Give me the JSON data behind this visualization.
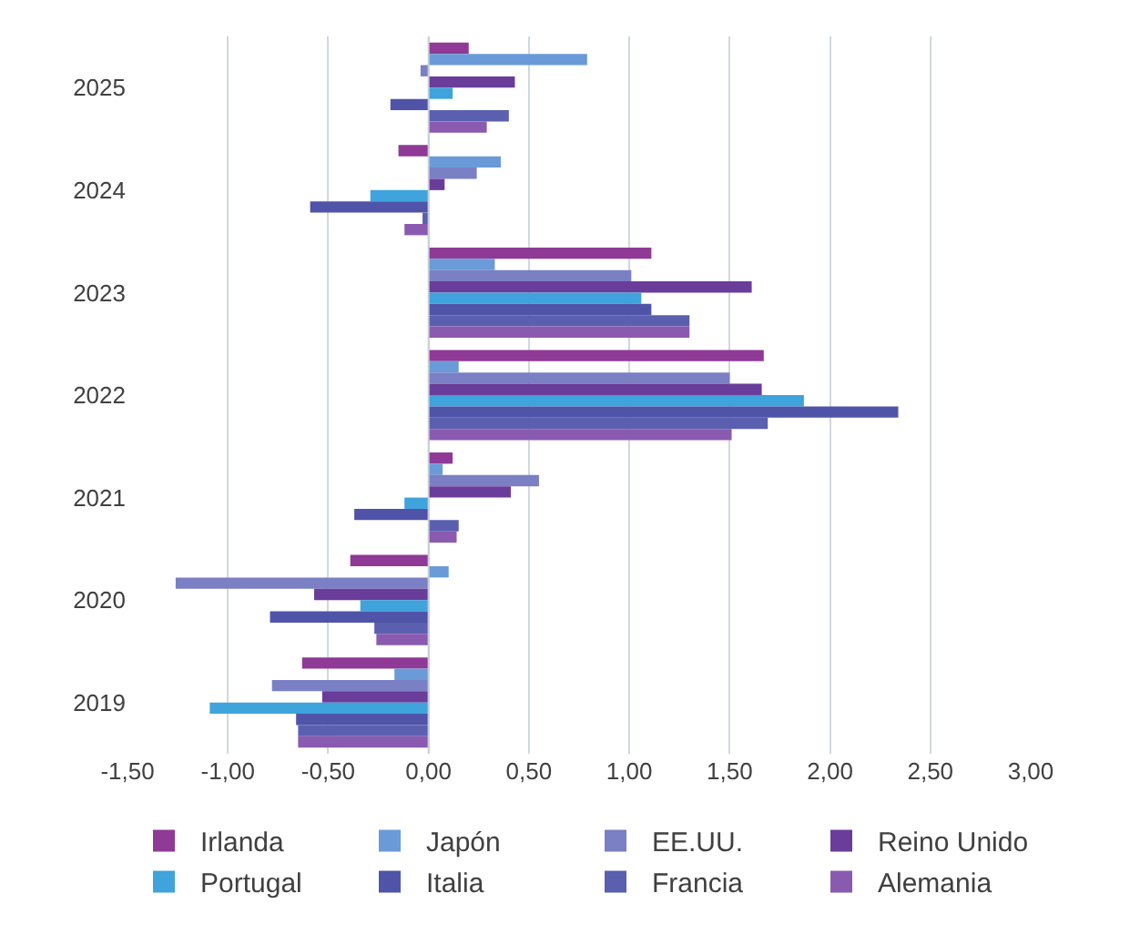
{
  "chart_data": {
    "type": "bar",
    "orientation": "horizontal",
    "categories": [
      "2025",
      "2024",
      "2023",
      "2022",
      "2021",
      "2020",
      "2019"
    ],
    "series": [
      {
        "name": "Irlanda",
        "color": "#8e3a96",
        "values": [
          0.2,
          -0.15,
          1.11,
          1.67,
          0.12,
          -0.39,
          -0.63
        ]
      },
      {
        "name": "Japón",
        "color": "#6a9bd8",
        "values": [
          0.79,
          0.36,
          0.33,
          0.15,
          0.07,
          0.1,
          -0.17
        ]
      },
      {
        "name": "EE.UU.",
        "color": "#7b7fc4",
        "values": [
          -0.04,
          0.24,
          1.01,
          1.5,
          0.55,
          -1.26,
          -0.78
        ]
      },
      {
        "name": "Reino Unido",
        "color": "#6a3d9a",
        "values": [
          0.43,
          0.08,
          1.61,
          1.66,
          0.41,
          -0.57,
          -0.53
        ]
      },
      {
        "name": "Portugal",
        "color": "#3fa3dc",
        "values": [
          0.12,
          -0.29,
          1.06,
          1.87,
          -0.12,
          -0.34,
          -1.09
        ]
      },
      {
        "name": "Italia",
        "color": "#4f54a8",
        "values": [
          -0.19,
          -0.59,
          1.11,
          2.34,
          -0.37,
          -0.79,
          -0.66
        ]
      },
      {
        "name": "Francia",
        "color": "#5a5fb0",
        "values": [
          0.4,
          -0.03,
          1.3,
          1.69,
          0.15,
          -0.27,
          -0.65
        ]
      },
      {
        "name": "Alemania",
        "color": "#8a5ab0",
        "values": [
          0.29,
          -0.12,
          1.3,
          1.51,
          0.14,
          -0.26,
          -0.65
        ]
      }
    ],
    "xlim": [
      -1.5,
      3.0
    ],
    "xticks": [
      {
        "value": -1.5,
        "label": "-1,50"
      },
      {
        "value": -1.0,
        "label": "-1,00"
      },
      {
        "value": -0.5,
        "label": "-0,50"
      },
      {
        "value": 0,
        "label": "0,00"
      },
      {
        "value": 0.5,
        "label": "0,50"
      },
      {
        "value": 1.0,
        "label": "1,00"
      },
      {
        "value": 1.5,
        "label": "1,50"
      },
      {
        "value": 2.0,
        "label": "2,00"
      },
      {
        "value": 2.5,
        "label": "2,50"
      },
      {
        "value": 3.0,
        "label": "3,00"
      }
    ],
    "grid": "x",
    "legend": "bottom"
  }
}
